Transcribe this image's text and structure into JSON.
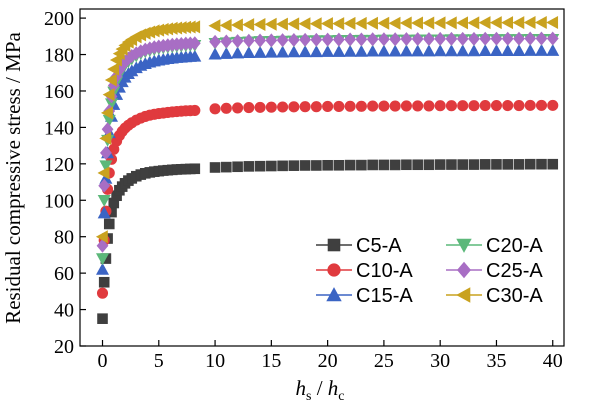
{
  "chart_data": {
    "type": "scatter",
    "ylabel": "Residual compressive stress / MPa",
    "xlabel": {
      "h": "h",
      "s": "s",
      "sep": " / ",
      "h2": "h",
      "c": "c"
    },
    "xlim": [
      -2,
      41
    ],
    "ylim": [
      20,
      205
    ],
    "xticks": [
      0,
      5,
      10,
      15,
      20,
      25,
      30,
      35,
      40
    ],
    "yticks": [
      20,
      40,
      60,
      80,
      100,
      120,
      140,
      160,
      180,
      200
    ],
    "legend_position": "bottom-right",
    "x": [
      0.0,
      0.15,
      0.3,
      0.45,
      0.6,
      0.8,
      1.0,
      1.25,
      1.5,
      1.75,
      2.0,
      2.3,
      2.6,
      3.0,
      3.4,
      3.8,
      4.2,
      4.6,
      5.0,
      5.4,
      5.8,
      6.2,
      6.6,
      7.0,
      7.4,
      7.8,
      8.2,
      10,
      11,
      12,
      13,
      14,
      15,
      16,
      17,
      18,
      19,
      20,
      21,
      22,
      23,
      24,
      25,
      26,
      27,
      28,
      29,
      30,
      31,
      32,
      33,
      34,
      35,
      36,
      37,
      38,
      39,
      40
    ],
    "series": [
      {
        "name": "C5-A",
        "marker": "square",
        "color": "#3f3f3f",
        "values": [
          35.0,
          55.0,
          68.0,
          79.0,
          87.0,
          93.5,
          98.5,
          102.5,
          105.5,
          107.5,
          109.3,
          110.8,
          112.0,
          113.2,
          114.1,
          114.8,
          115.3,
          115.7,
          116.0,
          116.3,
          116.5,
          116.7,
          116.9,
          117.0,
          117.1,
          117.2,
          117.3,
          118.0,
          118.2,
          118.4,
          118.6,
          118.7,
          118.8,
          118.9,
          119.0,
          119.1,
          119.1,
          119.2,
          119.2,
          119.3,
          119.3,
          119.4,
          119.4,
          119.4,
          119.5,
          119.5,
          119.5,
          119.6,
          119.6,
          119.6,
          119.6,
          119.7,
          119.7,
          119.7,
          119.7,
          119.8,
          119.8,
          119.8
        ]
      },
      {
        "name": "C10-A",
        "marker": "circle",
        "color": "#e03a3e",
        "values": [
          49.0,
          78.0,
          94.0,
          106.0,
          115.0,
          122.5,
          128.0,
          132.5,
          135.5,
          137.8,
          139.6,
          141.2,
          142.5,
          144.0,
          145.1,
          146.0,
          146.7,
          147.2,
          147.6,
          147.9,
          148.2,
          148.5,
          148.7,
          148.9,
          149.1,
          149.2,
          149.3,
          150.2,
          150.5,
          150.7,
          150.9,
          151.0,
          151.1,
          151.2,
          151.3,
          151.4,
          151.4,
          151.5,
          151.5,
          151.6,
          151.6,
          151.7,
          151.7,
          151.7,
          151.8,
          151.8,
          151.8,
          151.9,
          151.9,
          151.9,
          151.9,
          152.0,
          152.0,
          152.0,
          152.0,
          152.1,
          152.1,
          152.1
        ]
      },
      {
        "name": "C15-A",
        "marker": "triangle-up",
        "color": "#3b64c4",
        "values": [
          62.0,
          93.0,
          112.0,
          126.0,
          137.0,
          146.0,
          152.5,
          158.0,
          162.0,
          165.0,
          167.5,
          169.5,
          171.0,
          172.7,
          174.0,
          175.0,
          175.8,
          176.4,
          176.9,
          177.3,
          177.7,
          178.0,
          178.3,
          178.5,
          178.7,
          178.9,
          179.0,
          180.2,
          180.5,
          180.8,
          181.0,
          181.1,
          181.2,
          181.3,
          181.4,
          181.5,
          181.5,
          181.6,
          181.6,
          181.7,
          181.7,
          181.8,
          181.8,
          181.8,
          181.9,
          181.9,
          181.9,
          182.0,
          182.0,
          182.0,
          182.0,
          182.1,
          182.1,
          182.1,
          182.1,
          182.2,
          182.2,
          182.2
        ]
      },
      {
        "name": "C20-A",
        "marker": "triangle-down",
        "color": "#5cb87a",
        "values": [
          68.0,
          100.0,
          119.0,
          133.0,
          144.0,
          153.0,
          159.5,
          165.0,
          169.0,
          172.0,
          174.3,
          176.2,
          177.7,
          179.3,
          180.5,
          181.5,
          182.2,
          182.8,
          183.3,
          183.7,
          184.0,
          184.3,
          184.5,
          184.7,
          184.9,
          185.0,
          185.1,
          186.2,
          186.5,
          186.8,
          187.0,
          187.2,
          187.3,
          187.4,
          187.5,
          187.6,
          187.7,
          187.7,
          187.8,
          187.8,
          187.9,
          187.9,
          188.0,
          188.0,
          188.0,
          188.1,
          188.1,
          188.1,
          188.2,
          188.2,
          188.2,
          188.3,
          188.3,
          188.3,
          188.3,
          188.4,
          188.4,
          188.4
        ]
      },
      {
        "name": "C25-A",
        "marker": "diamond",
        "color": "#a86ec4",
        "values": [
          75.0,
          108.0,
          126.0,
          139.0,
          149.0,
          157.0,
          163.0,
          168.0,
          171.5,
          174.0,
          176.0,
          177.8,
          179.2,
          180.7,
          181.8,
          182.7,
          183.4,
          184.0,
          184.4,
          184.8,
          185.1,
          185.4,
          185.6,
          185.8,
          186.0,
          186.1,
          186.2,
          187.0,
          187.2,
          187.4,
          187.6,
          187.7,
          187.8,
          187.9,
          188.0,
          188.1,
          188.1,
          188.2,
          188.2,
          188.3,
          188.3,
          188.4,
          188.4,
          188.4,
          188.5,
          188.5,
          188.5,
          188.6,
          188.6,
          188.6,
          188.6,
          188.7,
          188.7,
          188.7,
          188.7,
          188.8,
          188.8,
          188.8
        ]
      },
      {
        "name": "C30-A",
        "marker": "triangle-left",
        "color": "#c9a21f",
        "values": [
          80.0,
          115.0,
          134.0,
          148.0,
          158.0,
          166.0,
          172.0,
          177.0,
          180.5,
          183.0,
          185.0,
          186.8,
          188.2,
          189.7,
          190.8,
          191.7,
          192.4,
          193.0,
          193.4,
          193.8,
          194.1,
          194.4,
          194.6,
          194.8,
          195.0,
          195.1,
          195.2,
          195.8,
          196.0,
          196.2,
          196.4,
          196.5,
          196.6,
          196.7,
          196.8,
          196.9,
          196.9,
          197.0,
          197.0,
          197.1,
          197.1,
          197.2,
          197.2,
          197.2,
          197.3,
          197.3,
          197.3,
          197.4,
          197.4,
          197.4,
          197.4,
          197.5,
          197.5,
          197.5,
          197.5,
          197.6,
          197.6,
          197.6
        ]
      }
    ]
  }
}
